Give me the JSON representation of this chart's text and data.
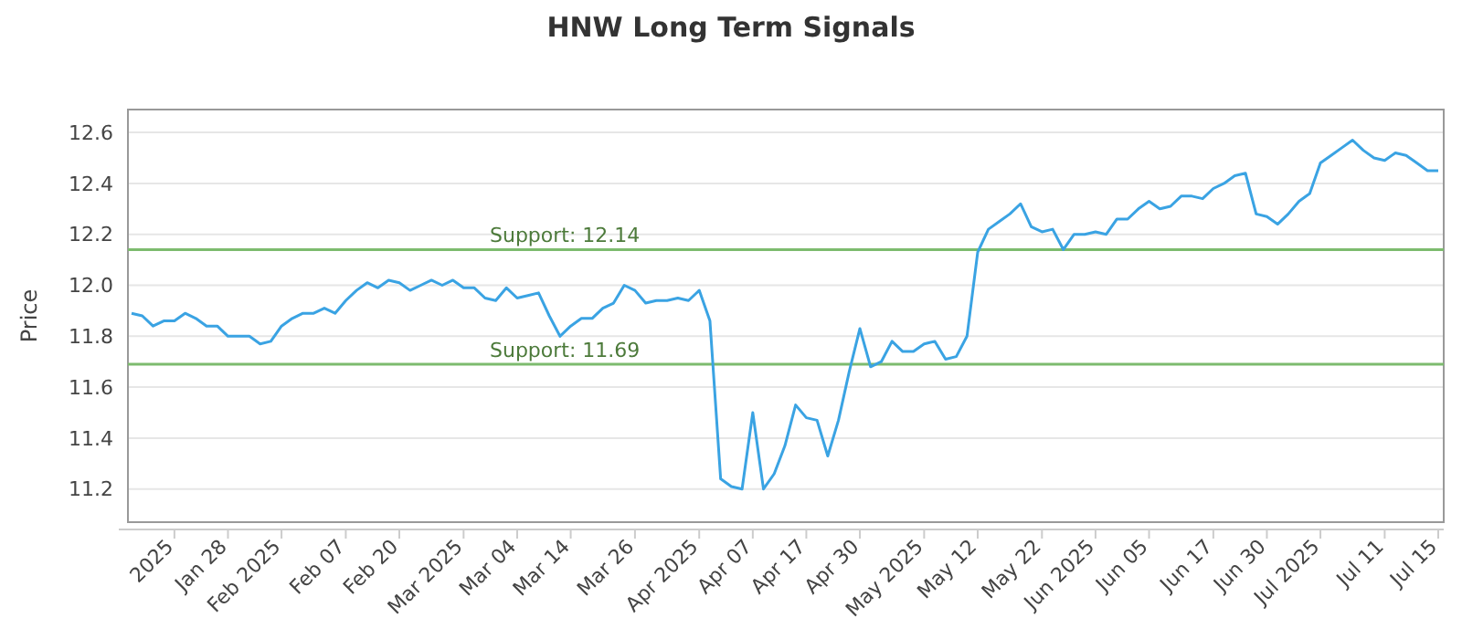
{
  "chart_data": {
    "type": "line",
    "title": "HNW Long Term Signals",
    "ylabel": "Price",
    "categories": [
      null,
      null,
      null,
      null,
      "2025",
      null,
      null,
      null,
      null,
      "Jan 28",
      null,
      null,
      null,
      null,
      "Feb 2025",
      null,
      null,
      null,
      null,
      null,
      "Feb 07",
      null,
      null,
      null,
      null,
      "Feb 20",
      null,
      null,
      null,
      null,
      null,
      "Mar 2025",
      null,
      null,
      null,
      null,
      "Mar 04",
      null,
      null,
      null,
      null,
      "Mar 14",
      null,
      null,
      null,
      null,
      null,
      "Mar 26",
      null,
      null,
      null,
      null,
      null,
      "Apr 2025",
      null,
      null,
      null,
      null,
      "Apr 07",
      null,
      null,
      null,
      null,
      "Apr 17",
      null,
      null,
      null,
      null,
      "Apr 30",
      null,
      null,
      null,
      null,
      null,
      "May 2025",
      null,
      null,
      null,
      null,
      "May 12",
      null,
      null,
      null,
      null,
      null,
      "May 22",
      null,
      null,
      null,
      null,
      "Jun 2025",
      null,
      null,
      null,
      null,
      "Jun 05",
      null,
      null,
      null,
      null,
      null,
      "Jun 17",
      null,
      null,
      null,
      null,
      "Jun 30",
      null,
      null,
      null,
      null,
      "Jul 2025",
      null,
      null,
      null,
      null,
      null,
      "Jul 11",
      null,
      null,
      null,
      null,
      "Jul 15"
    ],
    "series": [
      {
        "color": "#3aa3e3",
        "values": [
          11.89,
          11.88,
          11.84,
          11.86,
          11.86,
          11.89,
          11.87,
          11.84,
          11.84,
          11.8,
          11.8,
          11.8,
          11.77,
          11.78,
          11.84,
          11.87,
          11.89,
          11.89,
          11.91,
          11.89,
          11.94,
          11.98,
          12.01,
          11.99,
          12.02,
          12.01,
          11.98,
          12.0,
          12.02,
          12.0,
          12.02,
          11.99,
          11.99,
          11.95,
          11.94,
          11.99,
          11.95,
          11.96,
          11.97,
          11.88,
          11.8,
          11.84,
          11.87,
          11.87,
          11.91,
          11.93,
          12.0,
          11.98,
          11.93,
          11.94,
          11.94,
          11.95,
          11.94,
          11.98,
          11.86,
          11.24,
          11.21,
          11.2,
          11.5,
          11.2,
          11.26,
          11.37,
          11.53,
          11.48,
          11.47,
          11.33,
          11.47,
          11.66,
          11.83,
          11.68,
          11.7,
          11.78,
          11.74,
          11.74,
          11.77,
          11.78,
          11.71,
          11.72,
          11.8,
          12.13,
          12.22,
          12.25,
          12.28,
          12.32,
          12.23,
          12.21,
          12.22,
          12.14,
          12.2,
          12.2,
          12.21,
          12.2,
          12.26,
          12.26,
          12.3,
          12.33,
          12.3,
          12.31,
          12.35,
          12.35,
          12.34,
          12.38,
          12.4,
          12.43,
          12.44,
          12.28,
          12.27,
          12.24,
          12.28,
          12.33,
          12.36,
          12.48,
          12.51,
          12.54,
          12.57,
          12.53,
          12.5,
          12.49,
          12.52,
          12.51,
          12.48,
          12.45,
          12.45
        ]
      }
    ],
    "ylim": [
      11.07,
      12.69
    ],
    "yticks": [
      {
        "value": 11.2,
        "label": "11.2"
      },
      {
        "value": 11.4,
        "label": "11.4"
      },
      {
        "value": 11.6,
        "label": "11.6"
      },
      {
        "value": 11.8,
        "label": "11.8"
      },
      {
        "value": 12.0,
        "label": "12.0"
      },
      {
        "value": 12.2,
        "label": "12.2"
      },
      {
        "value": 12.4,
        "label": "12.4"
      },
      {
        "value": 12.6,
        "label": "12.6"
      }
    ],
    "grid": "y",
    "marker": "none",
    "line_style": "solid",
    "ref_lines": [
      {
        "axis": "y",
        "value": 12.14,
        "label": "Support: 12.14",
        "color": "#7dbb6e"
      },
      {
        "axis": "y",
        "value": 11.69,
        "label": "Support: 11.69",
        "color": "#7dbb6e"
      }
    ]
  }
}
